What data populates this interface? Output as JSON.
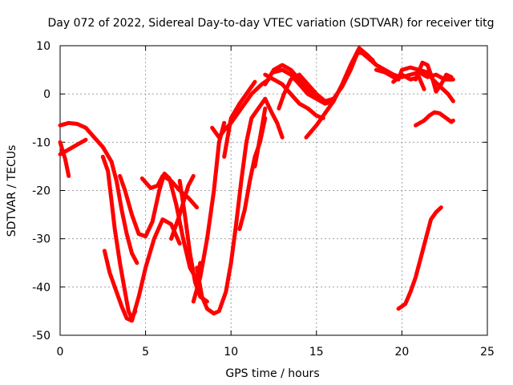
{
  "chart_data": {
    "type": "scatter",
    "title": "Day 072 of 2022, Sidereal Day-to-day VTEC variation (SDTVAR) for receiver titg",
    "xlabel": "GPS time / hours",
    "ylabel": "SDTVAR / TECUs",
    "xlim": [
      0,
      25
    ],
    "ylim": [
      -50,
      10
    ],
    "xticks": [
      0,
      5,
      10,
      15,
      20,
      25
    ],
    "yticks": [
      -50,
      -40,
      -30,
      -20,
      -10,
      0,
      10
    ],
    "grid": true,
    "marker": "+",
    "color": "#ff0000",
    "series": [
      {
        "points": [
          [
            0.0,
            -6.5
          ],
          [
            0.5,
            -6.0
          ],
          [
            1.0,
            -6.2
          ],
          [
            1.5,
            -7.0
          ],
          [
            2.0,
            -9.0
          ],
          [
            2.5,
            -11.0
          ],
          [
            3.0,
            -14.0
          ],
          [
            3.3,
            -18.0
          ],
          [
            3.6,
            -24.0
          ],
          [
            3.9,
            -29.0
          ],
          [
            4.2,
            -33.0
          ],
          [
            4.5,
            -35.0
          ]
        ]
      },
      {
        "points": [
          [
            0.0,
            -10.0
          ],
          [
            0.3,
            -13.5
          ],
          [
            0.5,
            -17.0
          ]
        ]
      },
      {
        "points": [
          [
            0.0,
            -12.5
          ],
          [
            0.5,
            -11.5
          ],
          [
            1.0,
            -10.5
          ],
          [
            1.5,
            -9.5
          ]
        ]
      },
      {
        "points": [
          [
            2.5,
            -13.0
          ],
          [
            2.8,
            -16.0
          ],
          [
            3.0,
            -22.0
          ],
          [
            3.2,
            -28.0
          ],
          [
            3.5,
            -35.0
          ],
          [
            3.8,
            -41.0
          ],
          [
            4.0,
            -45.0
          ],
          [
            4.2,
            -46.5
          ],
          [
            4.4,
            -45.0
          ]
        ]
      },
      {
        "points": [
          [
            2.6,
            -32.5
          ],
          [
            2.9,
            -37.0
          ],
          [
            3.2,
            -40.0
          ],
          [
            3.6,
            -44.0
          ],
          [
            3.9,
            -46.5
          ],
          [
            4.2,
            -47.0
          ],
          [
            4.6,
            -42.0
          ],
          [
            5.0,
            -36.0
          ],
          [
            5.5,
            -30.0
          ],
          [
            6.0,
            -26.0
          ],
          [
            6.5,
            -27.0
          ],
          [
            7.0,
            -31.0
          ]
        ]
      },
      {
        "points": [
          [
            3.5,
            -17.0
          ],
          [
            3.8,
            -20.0
          ],
          [
            4.2,
            -25.0
          ],
          [
            4.6,
            -29.0
          ],
          [
            5.0,
            -29.5
          ],
          [
            5.4,
            -26.5
          ],
          [
            5.8,
            -20.0
          ],
          [
            6.1,
            -16.5
          ],
          [
            6.4,
            -17.5
          ],
          [
            6.8,
            -23.0
          ],
          [
            7.2,
            -30.0
          ],
          [
            7.6,
            -36.0
          ],
          [
            8.0,
            -38.5
          ],
          [
            8.2,
            -35.0
          ]
        ]
      },
      {
        "points": [
          [
            4.8,
            -17.5
          ],
          [
            5.3,
            -19.5
          ],
          [
            5.7,
            -19.0
          ],
          [
            6.0,
            -17.0
          ],
          [
            6.5,
            -18.0
          ],
          [
            7.0,
            -20.0
          ],
          [
            7.5,
            -21.5
          ],
          [
            8.0,
            -23.5
          ]
        ]
      },
      {
        "points": [
          [
            6.5,
            -30.0
          ],
          [
            7.0,
            -25.0
          ],
          [
            7.5,
            -19.0
          ],
          [
            7.8,
            -17.0
          ]
        ]
      },
      {
        "points": [
          [
            7.0,
            -18.0
          ],
          [
            7.3,
            -25.0
          ],
          [
            7.6,
            -33.0
          ],
          [
            7.9,
            -39.0
          ],
          [
            8.2,
            -42.0
          ],
          [
            8.6,
            -43.0
          ]
        ]
      },
      {
        "points": [
          [
            7.8,
            -43.0
          ],
          [
            8.2,
            -38.0
          ],
          [
            8.6,
            -30.0
          ],
          [
            9.0,
            -20.0
          ],
          [
            9.3,
            -10.0
          ],
          [
            9.6,
            -6.0
          ]
        ]
      },
      {
        "points": [
          [
            8.0,
            -36.0
          ],
          [
            8.3,
            -42.0
          ],
          [
            8.6,
            -44.5
          ],
          [
            9.0,
            -45.5
          ],
          [
            9.3,
            -45.0
          ],
          [
            9.7,
            -41.0
          ],
          [
            10.0,
            -35.0
          ],
          [
            10.3,
            -27.0
          ],
          [
            10.6,
            -18.0
          ],
          [
            10.9,
            -10.0
          ],
          [
            11.2,
            -5.0
          ],
          [
            11.6,
            -3.0
          ],
          [
            12.0,
            -1.0
          ]
        ]
      },
      {
        "points": [
          [
            8.9,
            -7.0
          ],
          [
            9.3,
            -9.0
          ],
          [
            9.6,
            -7.5
          ],
          [
            10.0,
            -6.0
          ],
          [
            10.6,
            -3.0
          ],
          [
            11.2,
            0.0
          ],
          [
            11.8,
            2.0
          ],
          [
            12.2,
            3.0
          ]
        ]
      },
      {
        "points": [
          [
            9.6,
            -13.0
          ],
          [
            10.0,
            -5.0
          ],
          [
            10.5,
            -2.0
          ],
          [
            11.0,
            0.5
          ],
          [
            11.4,
            2.5
          ]
        ]
      },
      {
        "points": [
          [
            10.5,
            -28.0
          ],
          [
            10.8,
            -24.0
          ],
          [
            11.1,
            -18.0
          ],
          [
            11.4,
            -13.0
          ],
          [
            11.7,
            -10.0
          ],
          [
            12.0,
            -5.0
          ]
        ]
      },
      {
        "points": [
          [
            11.4,
            -15.0
          ],
          [
            11.8,
            -7.0
          ],
          [
            12.0,
            -3.0
          ]
        ]
      },
      {
        "points": [
          [
            12.0,
            -1.0
          ],
          [
            12.4,
            -4.0
          ],
          [
            12.7,
            -6.0
          ],
          [
            13.0,
            -9.0
          ]
        ]
      },
      {
        "points": [
          [
            12.0,
            2.0
          ],
          [
            12.5,
            5.0
          ],
          [
            13.0,
            6.0
          ],
          [
            13.5,
            5.0
          ],
          [
            14.0,
            3.0
          ],
          [
            14.5,
            1.0
          ],
          [
            15.0,
            -0.5
          ],
          [
            15.5,
            -1.5
          ],
          [
            16.0,
            -1.0
          ]
        ]
      },
      {
        "points": [
          [
            12.0,
            4.0
          ],
          [
            12.5,
            3.0
          ],
          [
            13.0,
            2.0
          ],
          [
            13.5,
            0.0
          ],
          [
            14.0,
            -2.0
          ],
          [
            14.5,
            -3.0
          ],
          [
            15.0,
            -4.5
          ],
          [
            15.4,
            -5.0
          ]
        ]
      },
      {
        "points": [
          [
            12.5,
            4.5
          ],
          [
            13.0,
            5.0
          ],
          [
            13.5,
            4.0
          ],
          [
            14.0,
            2.0
          ],
          [
            14.5,
            0.0
          ],
          [
            15.0,
            -1.0
          ],
          [
            15.5,
            -2.0
          ],
          [
            16.0,
            -1.5
          ]
        ]
      },
      {
        "points": [
          [
            12.8,
            -3.0
          ],
          [
            13.1,
            0.0
          ],
          [
            13.5,
            3.0
          ],
          [
            14.0,
            4.0
          ],
          [
            14.5,
            2.0
          ],
          [
            15.0,
            0.0
          ],
          [
            15.5,
            -1.5
          ]
        ]
      },
      {
        "points": [
          [
            14.4,
            -9.0
          ],
          [
            15.0,
            -6.5
          ],
          [
            15.5,
            -4.0
          ],
          [
            16.0,
            -1.5
          ],
          [
            16.5,
            2.0
          ],
          [
            17.0,
            6.0
          ],
          [
            17.5,
            9.5
          ],
          [
            18.0,
            8.0
          ],
          [
            18.5,
            6.0
          ],
          [
            19.0,
            5.0
          ],
          [
            19.5,
            4.0
          ]
        ]
      },
      {
        "points": [
          [
            16.0,
            -1.0
          ],
          [
            16.5,
            1.5
          ],
          [
            17.0,
            5.0
          ],
          [
            17.4,
            8.5
          ],
          [
            17.8,
            8.5
          ],
          [
            18.3,
            7.0
          ]
        ]
      },
      {
        "points": [
          [
            17.5,
            9.0
          ],
          [
            18.0,
            7.5
          ],
          [
            18.5,
            6.0
          ],
          [
            19.0,
            5.0
          ],
          [
            19.5,
            4.0
          ],
          [
            20.0,
            3.5
          ],
          [
            20.5,
            4.0
          ],
          [
            21.0,
            4.5
          ],
          [
            21.5,
            3.5
          ],
          [
            22.0,
            4.0
          ],
          [
            22.5,
            3.0
          ],
          [
            23.0,
            3.0
          ]
        ]
      },
      {
        "points": [
          [
            18.5,
            5.0
          ],
          [
            19.0,
            4.5
          ],
          [
            19.5,
            3.5
          ],
          [
            19.8,
            3.0
          ],
          [
            20.0,
            5.0
          ],
          [
            20.5,
            5.5
          ],
          [
            21.0,
            5.0
          ],
          [
            21.5,
            4.5
          ],
          [
            21.8,
            3.0
          ]
        ]
      },
      {
        "points": [
          [
            19.5,
            2.5
          ],
          [
            20.0,
            4.0
          ],
          [
            20.5,
            3.0
          ],
          [
            21.0,
            3.5
          ],
          [
            21.3,
            1.0
          ]
        ]
      },
      {
        "points": [
          [
            20.8,
            3.0
          ],
          [
            21.2,
            6.5
          ],
          [
            21.5,
            6.0
          ],
          [
            21.8,
            3.0
          ],
          [
            22.0,
            0.5
          ],
          [
            22.3,
            2.0
          ],
          [
            22.6,
            4.0
          ],
          [
            22.9,
            3.5
          ]
        ]
      },
      {
        "points": [
          [
            21.8,
            3.0
          ],
          [
            22.1,
            2.0
          ],
          [
            22.4,
            1.0
          ],
          [
            22.7,
            0.0
          ],
          [
            23.0,
            -1.5
          ]
        ]
      },
      {
        "points": [
          [
            20.8,
            -6.5
          ],
          [
            21.3,
            -5.5
          ],
          [
            21.6,
            -4.5
          ],
          [
            21.9,
            -3.8
          ],
          [
            22.2,
            -4.0
          ],
          [
            22.6,
            -5.0
          ],
          [
            22.9,
            -5.8
          ],
          [
            23.0,
            -5.5
          ]
        ]
      },
      {
        "points": [
          [
            19.8,
            -44.5
          ],
          [
            20.2,
            -43.5
          ],
          [
            20.5,
            -41.0
          ],
          [
            20.8,
            -38.0
          ],
          [
            21.1,
            -34.0
          ],
          [
            21.4,
            -30.0
          ],
          [
            21.7,
            -26.0
          ],
          [
            22.0,
            -24.5
          ],
          [
            22.3,
            -23.5
          ]
        ]
      }
    ]
  }
}
